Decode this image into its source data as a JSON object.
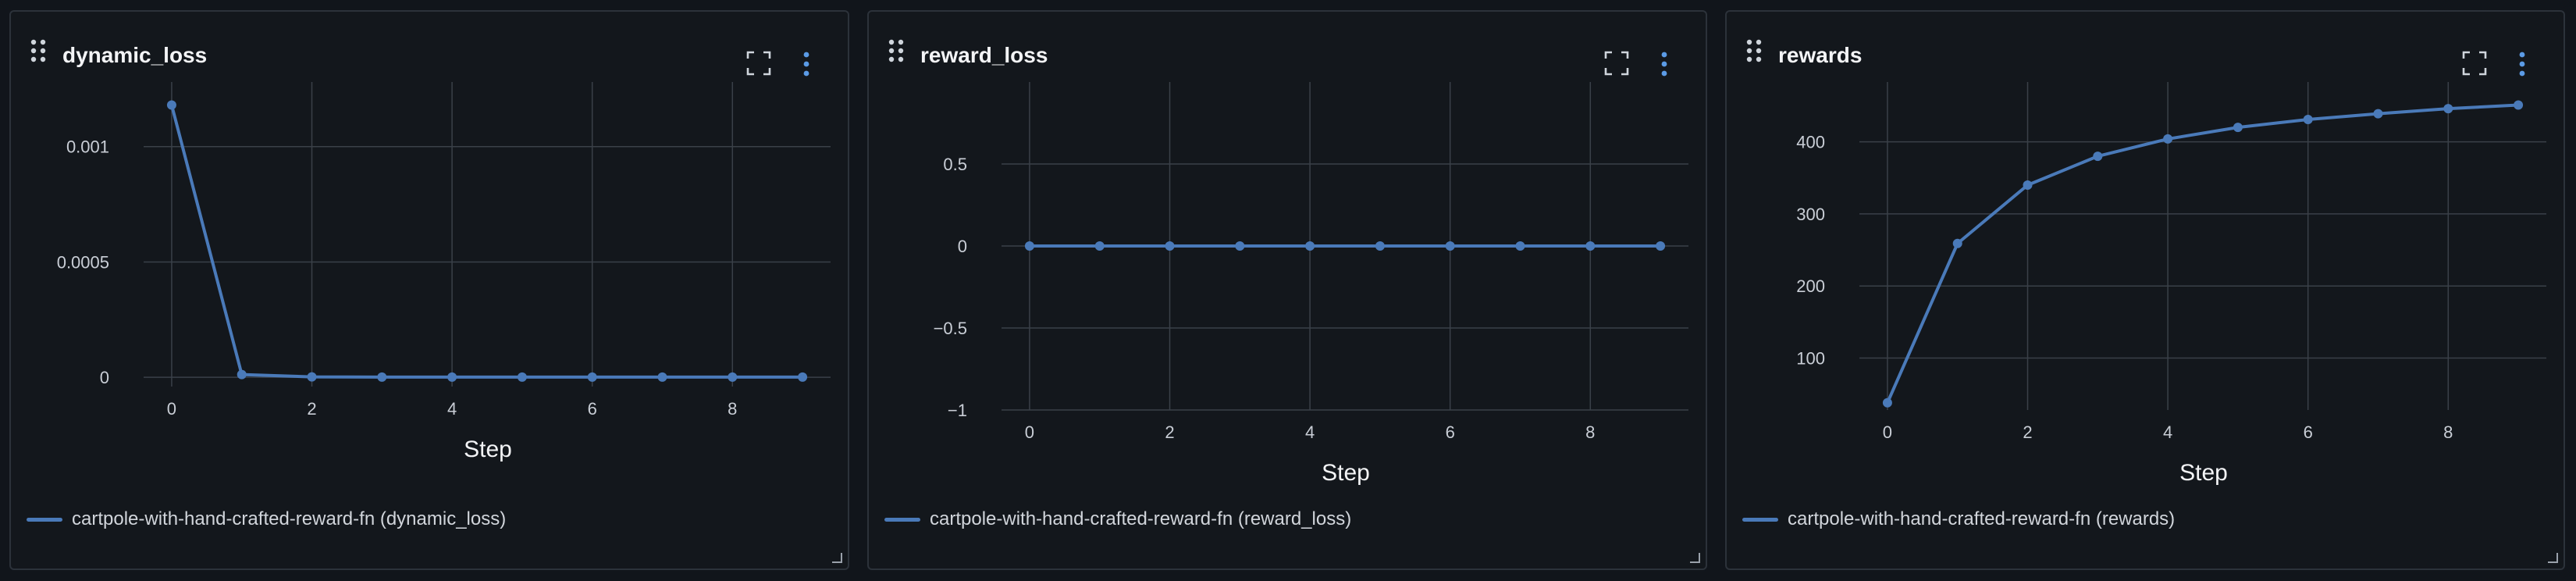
{
  "theme": {
    "background": "#11151b",
    "panel": "#13171c",
    "grid": "#3a4048",
    "series_color": "#4a7ab9",
    "icon_color": "#cfd5dc",
    "menu_color": "#5b9be6"
  },
  "panels": [
    {
      "title": "dynamic_loss",
      "legend_label": "cartpole-with-hand-crafted-reward-fn (dynamic_loss)"
    },
    {
      "title": "reward_loss",
      "legend_label": "cartpole-with-hand-crafted-reward-fn (reward_loss)"
    },
    {
      "title": "rewards",
      "legend_label": "cartpole-with-hand-crafted-reward-fn (rewards)"
    }
  ],
  "chart_data": [
    {
      "type": "line",
      "title": "dynamic_loss",
      "xlabel": "Step",
      "ylabel": "",
      "x": [
        0,
        1,
        2,
        3,
        4,
        5,
        6,
        7,
        8,
        9
      ],
      "series": [
        {
          "name": "cartpole-with-hand-crafted-reward-fn (dynamic_loss)",
          "values": [
            0.00118,
            1.2e-05,
            2e-06,
            1e-06,
            1e-06,
            1e-06,
            1e-06,
            1e-06,
            1e-06,
            1e-06
          ]
        }
      ],
      "xlim": [
        -0.4,
        9.4
      ],
      "ylim": [
        -4e-05,
        0.00128
      ],
      "xticks": [
        0,
        2,
        4,
        6,
        8
      ],
      "xtick_labels": [
        "0",
        "2",
        "4",
        "6",
        "8"
      ],
      "yticks": [
        0,
        0.0005,
        0.001
      ],
      "ytick_labels": [
        "0",
        "0.0005",
        "0.001"
      ],
      "grid": true,
      "legend": "bottom-left"
    },
    {
      "type": "line",
      "title": "reward_loss",
      "xlabel": "Step",
      "ylabel": "",
      "x": [
        0,
        1,
        2,
        3,
        4,
        5,
        6,
        7,
        8,
        9
      ],
      "series": [
        {
          "name": "cartpole-with-hand-crafted-reward-fn (reward_loss)",
          "values": [
            0,
            0,
            0,
            0,
            0,
            0,
            0,
            0,
            0,
            0
          ]
        }
      ],
      "xlim": [
        -0.4,
        9.4
      ],
      "ylim": [
        -1,
        1
      ],
      "xticks": [
        0,
        2,
        4,
        6,
        8
      ],
      "xtick_labels": [
        "0",
        "2",
        "4",
        "6",
        "8"
      ],
      "yticks": [
        -1,
        -0.5,
        0,
        0.5
      ],
      "ytick_labels": [
        "−1",
        "−0.5",
        "0",
        "0.5"
      ],
      "grid": true,
      "legend": "bottom-left"
    },
    {
      "type": "line",
      "title": "rewards",
      "xlabel": "Step",
      "ylabel": "",
      "x": [
        0,
        1,
        2,
        3,
        4,
        5,
        6,
        7,
        8,
        9
      ],
      "series": [
        {
          "name": "cartpole-with-hand-crafted-reward-fn (rewards)",
          "values": [
            38,
            259,
            340,
            380,
            404,
            420,
            431,
            439,
            446,
            451
          ]
        }
      ],
      "xlim": [
        -0.4,
        9.4
      ],
      "ylim": [
        28,
        483
      ],
      "xticks": [
        0,
        2,
        4,
        6,
        8
      ],
      "xtick_labels": [
        "0",
        "2",
        "4",
        "6",
        "8"
      ],
      "yticks": [
        100,
        200,
        300,
        400
      ],
      "ytick_labels": [
        "100",
        "200",
        "300",
        "400"
      ],
      "grid": true,
      "legend": "bottom-left"
    }
  ]
}
